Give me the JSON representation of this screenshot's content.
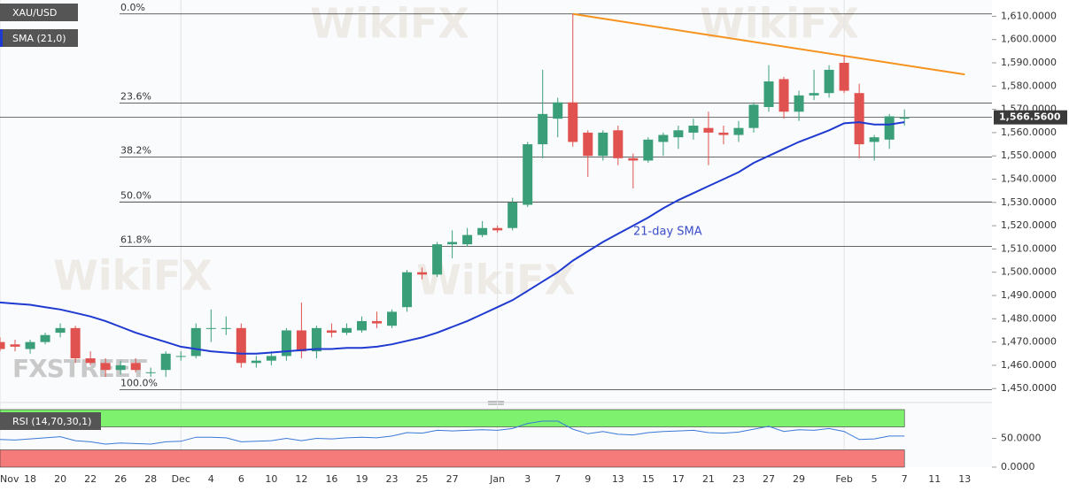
{
  "chart_data": [
    {
      "type": "candlestick",
      "categories": [
        "Nov",
        null,
        "18",
        null,
        "20",
        null,
        "22",
        null,
        "26",
        null,
        "28",
        null,
        "Dec",
        null,
        "4",
        null,
        "6",
        null,
        "10",
        null,
        "12",
        null,
        "16",
        null,
        "19",
        null,
        "23",
        null,
        "25",
        null,
        "27",
        null,
        null,
        "Jan",
        null,
        "3",
        null,
        "7",
        null,
        "9",
        null,
        "13",
        null,
        "15",
        null,
        "17",
        null,
        "21",
        null,
        "23",
        null,
        "27",
        null,
        "29",
        null,
        null,
        "Feb",
        null,
        "5",
        null,
        "7",
        null,
        "11",
        null,
        "13"
      ],
      "series": [
        {
          "name": "XAU/USD",
          "up_color": "#3a9f79",
          "down_color": "#e0524f",
          "open": [
            1470,
            1469,
            1467,
            1470,
            1474,
            1476,
            1463,
            1461,
            1458,
            1461,
            1457,
            1458,
            1464,
            1464,
            1476,
            1476,
            1476,
            1461,
            1462,
            1464,
            1475,
            1466,
            1475,
            1474,
            1475,
            1479,
            1477,
            1485,
            1500,
            1499,
            1512,
            1512,
            1516,
            1519,
            1519,
            1529,
            1555,
            1566,
            1573,
            1560,
            1550,
            1561,
            1549,
            1548,
            1556,
            1558,
            1560,
            1562,
            1560,
            1559,
            1562,
            1571,
            1583,
            1569,
            1576,
            1577,
            1590,
            1577,
            1556,
            1557,
            1566,
            null,
            null,
            null,
            null
          ],
          "high": [
            1472,
            1471,
            1471,
            1474,
            1478,
            1477,
            1466,
            1463,
            1462,
            1463,
            1459,
            1466,
            1466,
            1478,
            1484,
            1481,
            1478,
            1464,
            1466,
            1476,
            1487,
            1477,
            1478,
            1478,
            1481,
            1483,
            1484,
            1501,
            1502,
            1513,
            1518,
            1519,
            1522,
            1520,
            1532,
            1556,
            1587,
            1575,
            1611,
            1561,
            1561,
            1563,
            1551,
            1558,
            1560,
            1563,
            1566,
            1569,
            1563,
            1565,
            1573,
            1589,
            1584,
            1578,
            1587,
            1589,
            1593,
            1581,
            1559,
            1568,
            1570,
            null,
            null,
            null,
            null
          ],
          "low": [
            1466,
            1466,
            1465,
            1469,
            1472,
            1461,
            1460,
            1455,
            1456,
            1457,
            1455,
            1455,
            1462,
            1463,
            1470,
            1473,
            1459,
            1459,
            1460,
            1462,
            1463,
            1463,
            1472,
            1473,
            1474,
            1476,
            1476,
            1483,
            1497,
            1498,
            1506,
            1511,
            1515,
            1517,
            1518,
            1528,
            1549,
            1558,
            1554,
            1541,
            1548,
            1546,
            1536,
            1547,
            1550,
            1553,
            1557,
            1546,
            1555,
            1556,
            1560,
            1569,
            1566,
            1565,
            1574,
            1575,
            1577,
            1549,
            1548,
            1553,
            1563,
            null,
            null,
            null,
            null
          ],
          "close": [
            1467,
            1468,
            1470,
            1473,
            1476,
            1463,
            1461,
            1458,
            1460,
            1458,
            1457,
            1465,
            1464,
            1476,
            1476,
            1476,
            1461,
            1462,
            1464,
            1475,
            1466,
            1476,
            1474,
            1476,
            1479,
            1478,
            1483,
            1500,
            1499,
            1512,
            1513,
            1516,
            1519,
            1518,
            1530,
            1555,
            1568,
            1573,
            1556,
            1550,
            1560,
            1549,
            1548,
            1557,
            1559,
            1561,
            1563,
            1560,
            1559,
            1562,
            1572,
            1582,
            1569,
            1576,
            1577,
            1587,
            1578,
            1555,
            1558,
            1567,
            1566.56,
            null,
            null,
            null,
            null
          ]
        },
        {
          "name": "SMA (21,0)",
          "color": "#1f3ad1",
          "values": [
            1487,
            1486.5,
            1486,
            1485,
            1484,
            1482.5,
            1481,
            1479,
            1476.5,
            1474,
            1472,
            1470,
            1468,
            1467,
            1466,
            1465.5,
            1465,
            1465,
            1465.5,
            1466,
            1466.5,
            1467,
            1467,
            1467.5,
            1467.5,
            1468,
            1469,
            1470.5,
            1472,
            1474,
            1476.5,
            1479,
            1482,
            1485,
            1488,
            1492,
            1496,
            1500,
            1505,
            1509,
            1513,
            1516.5,
            1520,
            1523.5,
            1527.5,
            1531,
            1534,
            1537,
            1540,
            1543,
            1547,
            1550,
            1553,
            1556,
            1558.5,
            1561,
            1564,
            1564.5,
            1563.5,
            1563.5,
            1564.5,
            null,
            null,
            null,
            null
          ]
        }
      ],
      "annotation": "21-day SMA",
      "trendline": {
        "x": [
          38,
          64
        ],
        "values": [
          1611,
          1585
        ],
        "color": "#f5931e"
      },
      "fib_levels": [
        {
          "label": "0.0%",
          "value": 1611
        },
        {
          "label": "23.6%",
          "value": 1572.7
        },
        {
          "label": "38.2%",
          "value": 1549.5
        },
        {
          "label": "50.0%",
          "value": 1530.2
        },
        {
          "label": "61.8%",
          "value": 1511.1
        },
        {
          "label": "100.0%",
          "value": 1449.5
        }
      ],
      "last_price": {
        "value": 1566.56,
        "label": "1,566.5600"
      },
      "ylim": [
        1444,
        1617
      ],
      "yticks": [
        {
          "value": 1450,
          "label": "1,450.0000"
        },
        {
          "value": 1460,
          "label": "1,460.0000"
        },
        {
          "value": 1470,
          "label": "1,470.0000"
        },
        {
          "value": 1480,
          "label": "1,480.0000"
        },
        {
          "value": 1490,
          "label": "1,490.0000"
        },
        {
          "value": 1500,
          "label": "1,500.0000"
        },
        {
          "value": 1510,
          "label": "1,510.0000"
        },
        {
          "value": 1520,
          "label": "1,520.0000"
        },
        {
          "value": 1530,
          "label": "1,530.0000"
        },
        {
          "value": 1540,
          "label": "1,540.0000"
        },
        {
          "value": 1550,
          "label": "1,550.0000"
        },
        {
          "value": 1560,
          "label": "1,560.0000"
        },
        {
          "value": 1570,
          "label": "1,570.0000"
        },
        {
          "value": 1580,
          "label": "1,580.0000"
        },
        {
          "value": 1590,
          "label": "1,590.0000"
        },
        {
          "value": 1600,
          "label": "1,600.0000"
        },
        {
          "value": 1610,
          "label": "1,610.0000"
        }
      ],
      "watermark": "WikiFX",
      "logo": "FXSTREET"
    },
    {
      "type": "line",
      "series": [
        {
          "name": "RSI (14,70,30,1)",
          "color": "#3b78d8",
          "values": [
            48,
            47,
            49,
            51,
            53,
            46,
            44,
            40,
            42,
            41,
            40,
            44,
            45,
            52,
            52,
            51,
            44,
            45,
            46,
            50,
            46,
            50,
            49,
            51,
            52,
            51,
            54,
            60,
            59,
            64,
            63,
            64,
            65,
            64,
            67,
            76,
            80,
            80,
            66,
            58,
            62,
            57,
            56,
            60,
            62,
            63,
            64,
            60,
            59,
            61,
            66,
            71,
            62,
            65,
            64,
            67,
            62,
            48,
            49,
            54,
            54,
            null,
            null,
            null,
            null
          ]
        }
      ],
      "levels": [
        70,
        30
      ],
      "ylim": [
        0,
        100
      ],
      "yticks": [
        {
          "value": 50,
          "label": "50.0000"
        },
        {
          "value": 0,
          "label": "0.0000"
        }
      ]
    }
  ]
}
